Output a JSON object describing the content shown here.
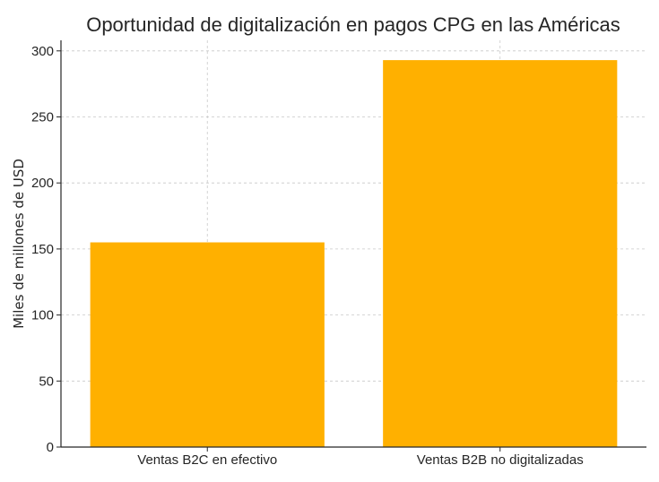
{
  "chart_data": {
    "type": "bar",
    "title": "Oportunidad de digitalización en pagos CPG en las Américas",
    "xlabel": "",
    "ylabel": "Miles de millones de USD",
    "categories": [
      "Ventas B2C en efectivo",
      "Ventas B2B no digitalizadas"
    ],
    "values": [
      155,
      293
    ],
    "ylim": [
      0,
      308
    ],
    "yticks": [
      0,
      50,
      100,
      150,
      200,
      250,
      300
    ],
    "grid": true,
    "bar_color": "#FFB000"
  }
}
